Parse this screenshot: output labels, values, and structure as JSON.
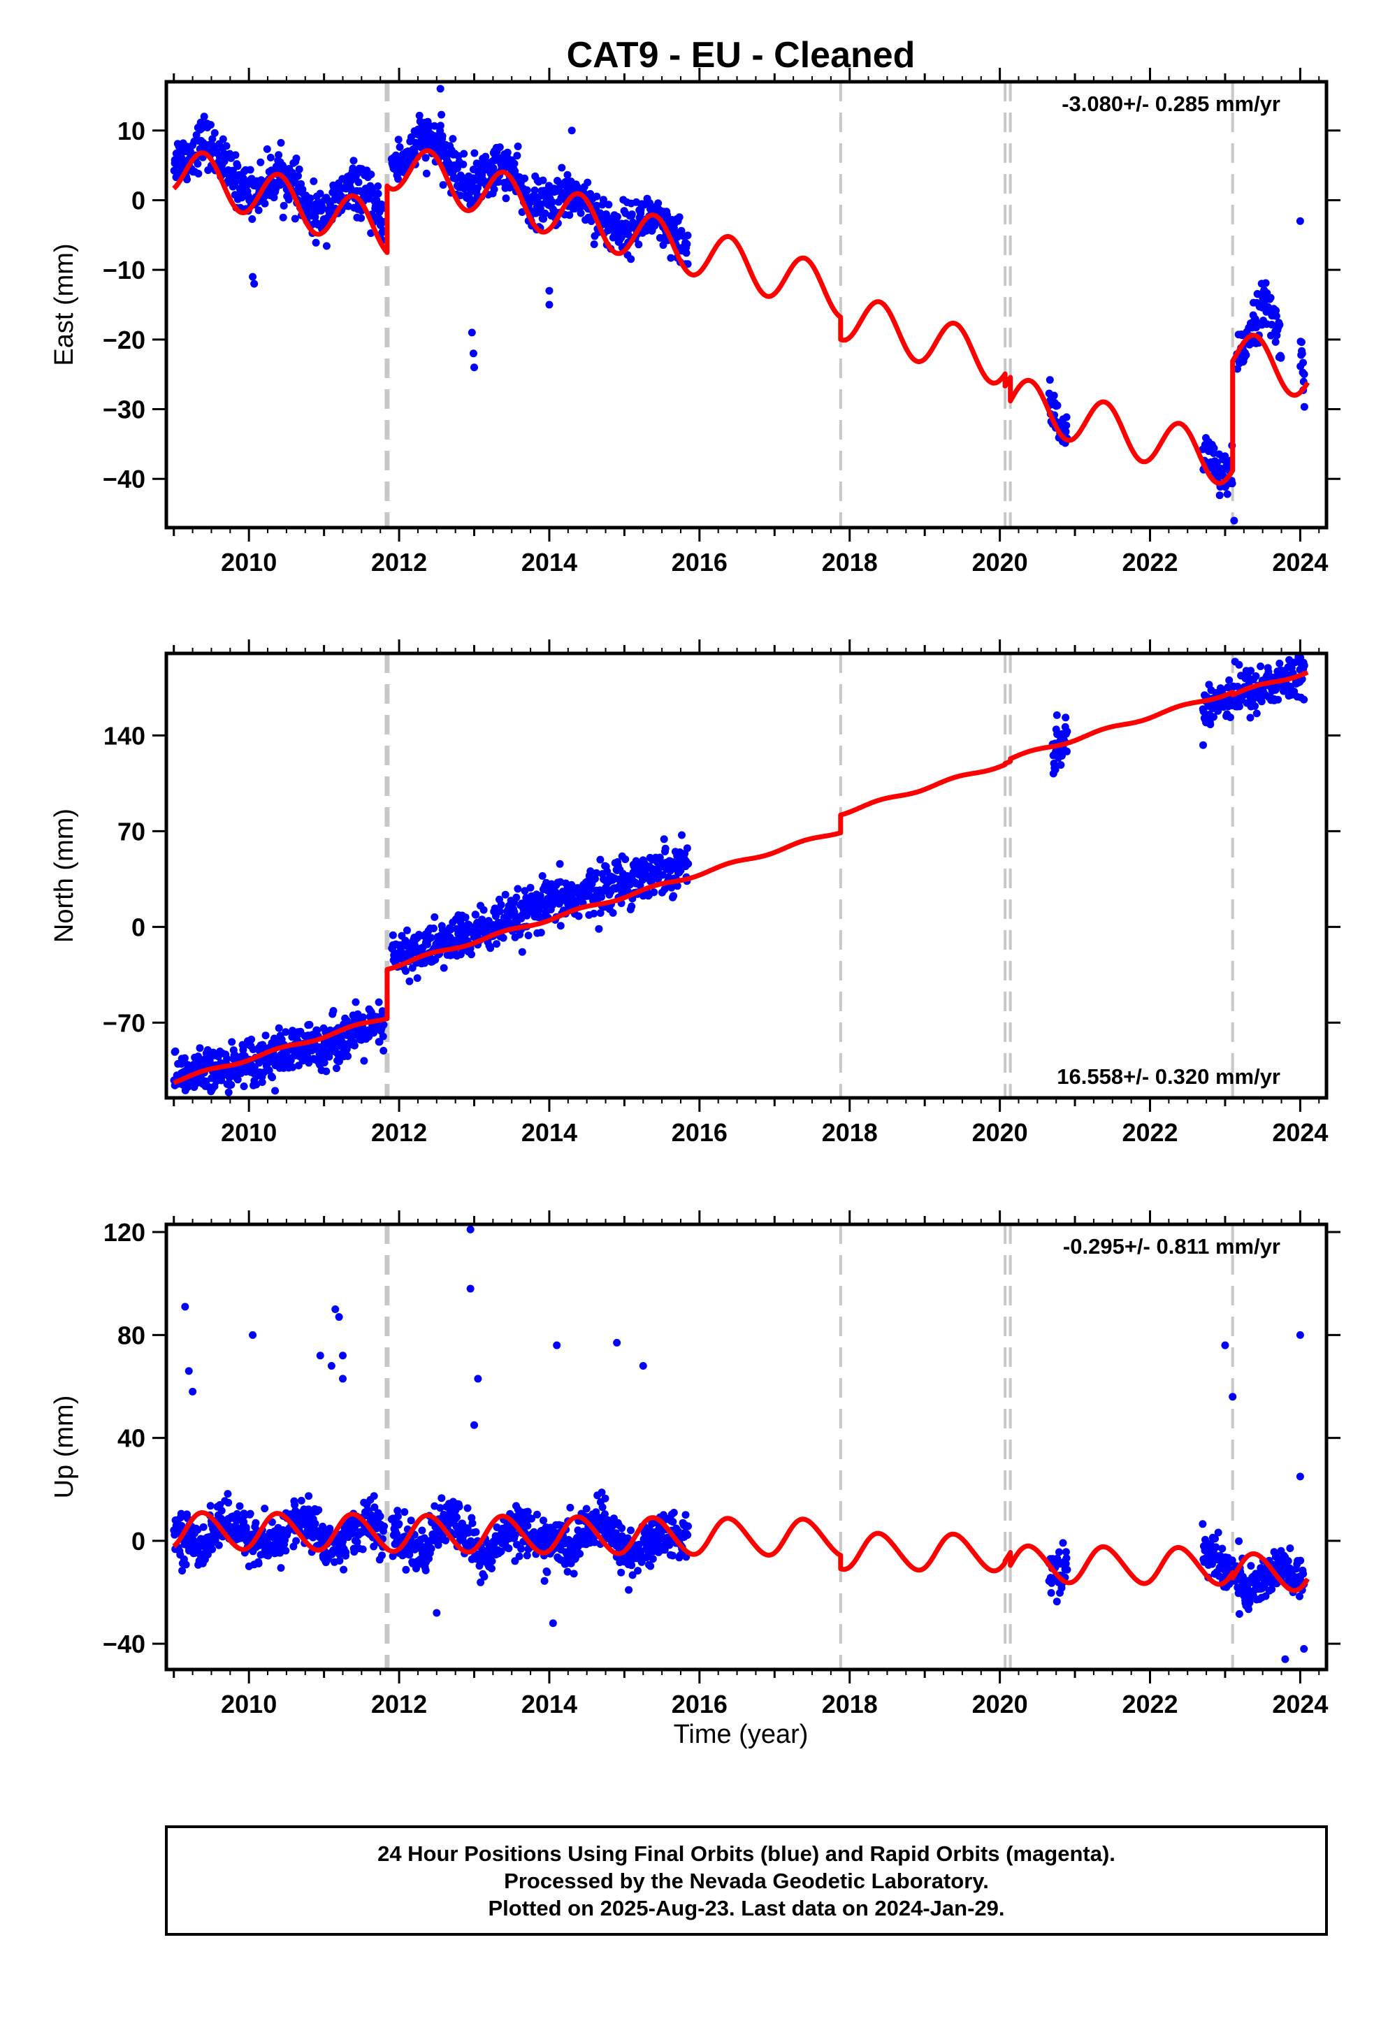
{
  "title": "CAT9  - EU - Cleaned",
  "colors": {
    "final_orbits": "#0000ff",
    "model_fit": "#ff0000",
    "event_lines": "#c8c8c8",
    "frame": "#000000"
  },
  "x_axis": {
    "label": "Time (year)",
    "range": [
      2008.9,
      2024.35
    ],
    "ticks": [
      "2010",
      "2012",
      "2014",
      "2016",
      "2018",
      "2020",
      "2022",
      "2024"
    ]
  },
  "event_lines": [
    2011.84,
    2017.88,
    2020.07,
    2020.14,
    2023.1
  ],
  "footer": [
    "24 Hour Positions Using Final Orbits (blue) and Rapid Orbits (magenta).",
    "Processed by the Nevada Geodetic Laboratory.",
    "Plotted on 2025-Aug-23. Last data on 2024-Jan-29."
  ],
  "chart_data": [
    {
      "type": "scatter",
      "ylabel": "East (mm)",
      "ylim": [
        -47,
        17
      ],
      "yticks": [
        "10",
        "0",
        "−10",
        "−20",
        "−30",
        "−40"
      ],
      "rate": "-3.080+/- 0.285 mm/yr",
      "rate_position": "top-right",
      "data_segments": [
        {
          "x": [
            2009.0,
            2009.2,
            2009.4,
            2009.6,
            2009.8,
            2010.0,
            2010.2,
            2010.4,
            2010.6,
            2010.8,
            2011.0,
            2011.2,
            2011.4,
            2011.6,
            2011.8
          ],
          "y": [
            6,
            6,
            9,
            6,
            3,
            1,
            2,
            4,
            2,
            -2,
            -2,
            0,
            2,
            0,
            -3
          ]
        },
        {
          "x": [
            2011.9,
            2012.1,
            2012.3,
            2012.5,
            2012.7,
            2012.9,
            2013.1,
            2013.3,
            2013.5,
            2013.7,
            2013.9,
            2014.1,
            2014.3,
            2014.5,
            2014.7,
            2014.9,
            2015.1,
            2015.3,
            2015.5,
            2015.7,
            2015.85
          ],
          "y": [
            5,
            6,
            9,
            8,
            5,
            2,
            3,
            5,
            4,
            0,
            -1,
            0,
            1,
            0,
            -3,
            -4,
            -4,
            -2,
            -4,
            -6,
            -7
          ]
        },
        {
          "x": [
            2020.65,
            2020.75,
            2020.85,
            2020.9
          ],
          "y": [
            -28,
            -31,
            -34,
            -35
          ]
        },
        {
          "x": [
            2022.7,
            2022.8,
            2022.9,
            2023.0,
            2023.1
          ],
          "y": [
            -35,
            -37,
            -39,
            -40,
            -39
          ]
        },
        {
          "x": [
            2023.15,
            2023.25,
            2023.35,
            2023.45,
            2023.55,
            2023.65,
            2023.75
          ],
          "y": [
            -24,
            -21,
            -18,
            -16,
            -15,
            -17,
            -21
          ]
        },
        {
          "x": [
            2024.0,
            2024.03,
            2024.06
          ],
          "y": [
            -20,
            -23,
            -27
          ]
        }
      ],
      "outliers": [
        {
          "x": 2010.05,
          "y": -11
        },
        {
          "x": 2010.07,
          "y": -12
        },
        {
          "x": 2012.97,
          "y": -19
        },
        {
          "x": 2012.99,
          "y": -22
        },
        {
          "x": 2013.0,
          "y": -24
        },
        {
          "x": 2014.0,
          "y": -13
        },
        {
          "x": 2014.0,
          "y": -15
        },
        {
          "x": 2014.3,
          "y": 10
        },
        {
          "x": 2012.55,
          "y": 16
        },
        {
          "x": 2024.0,
          "y": -3
        },
        {
          "x": 2023.12,
          "y": -46
        }
      ],
      "fit": {
        "segments": [
          [
            2009.0,
            2011.84
          ],
          [
            2011.84,
            2017.88
          ],
          [
            2017.88,
            2020.07
          ],
          [
            2020.07,
            2020.14
          ],
          [
            2020.14,
            2023.1
          ],
          [
            2023.1,
            2024.1
          ]
        ],
        "trend_start": [
          4.5,
          5.3,
          -16.5,
          -25.0,
          -28.6,
          -22.0
        ],
        "rate": -3.08,
        "seasonal": [
          3.5,
          0.0
        ]
      }
    },
    {
      "type": "scatter",
      "ylabel": "North (mm)",
      "ylim": [
        -125,
        200
      ],
      "yticks": [
        "140",
        "70",
        "0",
        "−70"
      ],
      "rate": "16.558+/- 0.320 mm/yr",
      "rate_position": "bottom-right",
      "data_segments": [
        {
          "x": [
            2009.0,
            2009.5,
            2010.0,
            2010.5,
            2011.0,
            2011.5,
            2011.8
          ],
          "y": [
            -110,
            -107,
            -98,
            -93,
            -86,
            -77,
            -73
          ]
        },
        {
          "x": [
            2011.9,
            2012.5,
            2013.0,
            2013.5,
            2014.0,
            2014.5,
            2015.0,
            2015.5,
            2015.85
          ],
          "y": [
            -22,
            -14,
            -4,
            4,
            17,
            24,
            34,
            42,
            48
          ]
        },
        {
          "x": [
            2020.7,
            2020.8,
            2020.9
          ],
          "y": [
            128,
            132,
            136
          ]
        },
        {
          "x": [
            2022.7,
            2023.0,
            2023.1,
            2023.5,
            2024.0,
            2024.06
          ],
          "y": [
            162,
            168,
            170,
            175,
            185,
            190
          ]
        }
      ],
      "outliers": [],
      "fit": {
        "segments": [
          [
            2009.0,
            2011.84
          ],
          [
            2011.84,
            2017.88
          ],
          [
            2017.88,
            2020.07
          ],
          [
            2020.07,
            2020.14
          ],
          [
            2020.14,
            2023.1
          ],
          [
            2023.1,
            2024.1
          ]
        ],
        "trend_start": [
          -113,
          -30,
          83,
          120,
          123,
          170
        ],
        "rate": 16.558,
        "seasonal": [
          1.2,
          0.0
        ]
      }
    },
    {
      "type": "scatter",
      "ylabel": "Up (mm)",
      "ylim": [
        -50,
        123
      ],
      "yticks": [
        "120",
        "80",
        "40",
        "0",
        "−40"
      ],
      "rate": "-0.295+/- 0.811 mm/yr",
      "rate_position": "top-right",
      "data_segments": [
        {
          "x": [
            2009.0,
            2009.2,
            2009.4,
            2009.6,
            2009.8,
            2010.0,
            2010.2,
            2010.4,
            2010.6,
            2010.8,
            2011.0,
            2011.2,
            2011.4,
            2011.6,
            2011.8
          ],
          "y": [
            5,
            0,
            -2,
            8,
            5,
            3,
            -4,
            0,
            8,
            7,
            0,
            -3,
            5,
            8,
            2
          ]
        },
        {
          "x": [
            2011.9,
            2012.1,
            2012.3,
            2012.5,
            2012.7,
            2012.9,
            2013.1,
            2013.3,
            2013.5,
            2013.7,
            2013.9,
            2014.1,
            2014.3,
            2014.5,
            2014.7,
            2014.9,
            2015.1,
            2015.3,
            2015.5,
            2015.7,
            2015.85
          ],
          "y": [
            2,
            0,
            -6,
            5,
            8,
            3,
            -8,
            -3,
            7,
            4,
            -2,
            0,
            -5,
            6,
            7,
            0,
            -6,
            -2,
            4,
            2,
            0
          ]
        },
        {
          "x": [
            2020.65,
            2020.75,
            2020.85,
            2020.9
          ],
          "y": [
            -8,
            -12,
            -10,
            -8
          ]
        },
        {
          "x": [
            2022.7,
            2022.9,
            2023.1,
            2023.3,
            2023.5,
            2023.7,
            2023.9,
            2024.05
          ],
          "y": [
            -3,
            -8,
            -12,
            -20,
            -15,
            -10,
            -14,
            -18
          ]
        }
      ],
      "outliers": [
        {
          "x": 2009.15,
          "y": 91
        },
        {
          "x": 2009.2,
          "y": 66
        },
        {
          "x": 2009.25,
          "y": 58
        },
        {
          "x": 2010.05,
          "y": 80
        },
        {
          "x": 2010.95,
          "y": 72
        },
        {
          "x": 2011.1,
          "y": 68
        },
        {
          "x": 2011.15,
          "y": 90
        },
        {
          "x": 2011.2,
          "y": 87
        },
        {
          "x": 2011.25,
          "y": 72
        },
        {
          "x": 2011.25,
          "y": 63
        },
        {
          "x": 2012.95,
          "y": 121
        },
        {
          "x": 2012.95,
          "y": 98
        },
        {
          "x": 2013.05,
          "y": 63
        },
        {
          "x": 2013.0,
          "y": 45
        },
        {
          "x": 2014.1,
          "y": 76
        },
        {
          "x": 2014.9,
          "y": 77
        },
        {
          "x": 2015.25,
          "y": 68
        },
        {
          "x": 2014.05,
          "y": -32
        },
        {
          "x": 2023.0,
          "y": 76
        },
        {
          "x": 2023.1,
          "y": 56
        },
        {
          "x": 2024.0,
          "y": 80
        },
        {
          "x": 2024.0,
          "y": 25
        },
        {
          "x": 2023.8,
          "y": -46
        },
        {
          "x": 2024.05,
          "y": -42
        },
        {
          "x": 2012.5,
          "y": -28
        }
      ],
      "fit": {
        "segments": [
          [
            2009.0,
            2011.84
          ],
          [
            2011.84,
            2017.88
          ],
          [
            2017.88,
            2020.07
          ],
          [
            2020.07,
            2020.14
          ],
          [
            2020.14,
            2023.1
          ],
          [
            2023.1,
            2024.1
          ]
        ],
        "trend_start": [
          4,
          3,
          -4,
          -4,
          -9,
          -12
        ],
        "rate": -0.295,
        "seasonal": [
          7.0,
          0.5
        ]
      }
    }
  ]
}
